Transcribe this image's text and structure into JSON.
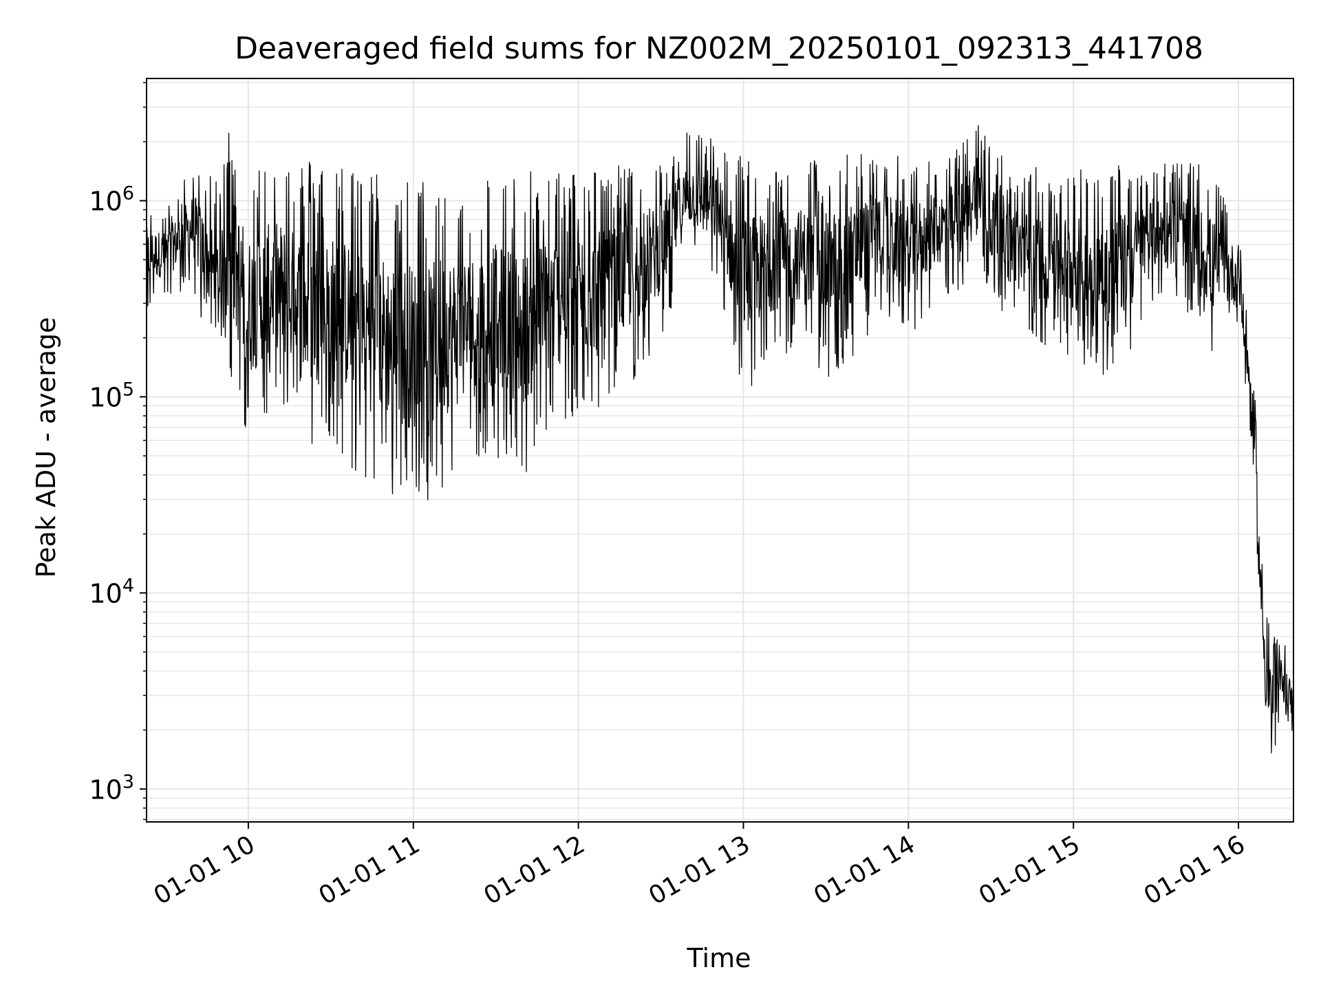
{
  "chart_data": {
    "type": "line",
    "title": "Deaveraged field sums for NZ002M_20250101_092313_441708",
    "xlabel": "Time",
    "ylabel": "Peak ADU - average",
    "yscale": "log",
    "xlim": [
      "2025-01-01 09:23",
      "2025-01-01 16:20"
    ],
    "ylim": [
      680,
      4200000
    ],
    "x_ticks": [
      {
        "value": "2025-01-01 10:00",
        "label": "01-01 10"
      },
      {
        "value": "2025-01-01 11:00",
        "label": "01-01 11"
      },
      {
        "value": "2025-01-01 12:00",
        "label": "01-01 12"
      },
      {
        "value": "2025-01-01 13:00",
        "label": "01-01 13"
      },
      {
        "value": "2025-01-01 14:00",
        "label": "01-01 14"
      },
      {
        "value": "2025-01-01 15:00",
        "label": "01-01 15"
      },
      {
        "value": "2025-01-01 16:00",
        "label": "01-01 16"
      }
    ],
    "y_ticks": [
      {
        "value": 1000,
        "label_base": "10",
        "label_exp": "3"
      },
      {
        "value": 10000,
        "label_base": "10",
        "label_exp": "4"
      },
      {
        "value": 100000,
        "label_base": "10",
        "label_exp": "5"
      },
      {
        "value": 1000000,
        "label_base": "10",
        "label_exp": "6"
      }
    ],
    "grid": true,
    "colors": {
      "line": "#000000",
      "grid": "#e6e6e6",
      "axes": "#000000"
    },
    "series": [
      {
        "x": [
          "2025-01-01 09:23",
          "2025-01-01 09:30",
          "2025-01-01 09:40",
          "2025-01-01 09:50",
          "2025-01-01 09:53",
          "2025-01-01 10:00",
          "2025-01-01 10:10",
          "2025-01-01 10:20",
          "2025-01-01 10:30",
          "2025-01-01 10:40",
          "2025-01-01 10:50",
          "2025-01-01 11:00",
          "2025-01-01 11:05",
          "2025-01-01 11:10",
          "2025-01-01 11:20",
          "2025-01-01 11:30",
          "2025-01-01 11:40",
          "2025-01-01 11:50",
          "2025-01-01 12:00",
          "2025-01-01 12:10",
          "2025-01-01 12:20",
          "2025-01-01 12:30",
          "2025-01-01 12:40",
          "2025-01-01 12:50",
          "2025-01-01 13:00",
          "2025-01-01 13:10",
          "2025-01-01 13:20",
          "2025-01-01 13:30",
          "2025-01-01 13:40",
          "2025-01-01 13:50",
          "2025-01-01 14:00",
          "2025-01-01 14:10",
          "2025-01-01 14:20",
          "2025-01-01 14:25",
          "2025-01-01 14:30",
          "2025-01-01 14:40",
          "2025-01-01 14:50",
          "2025-01-01 15:00",
          "2025-01-01 15:10",
          "2025-01-01 15:20",
          "2025-01-01 15:30",
          "2025-01-01 15:40",
          "2025-01-01 15:50",
          "2025-01-01 15:55",
          "2025-01-01 16:00",
          "2025-01-01 16:03",
          "2025-01-01 16:06",
          "2025-01-01 16:08",
          "2025-01-01 16:10",
          "2025-01-01 16:13",
          "2025-01-01 16:16",
          "2025-01-01 16:20"
        ],
        "y": [
          500000,
          450000,
          700000,
          520000,
          600000,
          400000,
          700000,
          250000,
          300000,
          450000,
          200000,
          220000,
          150000,
          200000,
          250000,
          300000,
          250000,
          280000,
          250000,
          500000,
          300000,
          400000,
          900000,
          800000,
          650000,
          450000,
          400000,
          420000,
          500000,
          650000,
          700000,
          750000,
          900000,
          1200000,
          700000,
          550000,
          600000,
          500000,
          600000,
          650000,
          800000,
          900000,
          700000,
          650000,
          300000,
          150000,
          50000,
          10000,
          4500,
          4000,
          4200,
          2000
        ],
        "envelope_high": [
          1000000,
          900000,
          1600000,
          1200000,
          2700000,
          1500000,
          1700000,
          1700000,
          1600000,
          1500000,
          1400000,
          1300000,
          1300000,
          1400000,
          1300000,
          1400000,
          1400000,
          1500000,
          1500000,
          1500000,
          1600000,
          1600000,
          2400000,
          2100000,
          1700000,
          1600000,
          1600000,
          1700000,
          1800000,
          1900000,
          1600000,
          1700000,
          2000000,
          2600000,
          2000000,
          1500000,
          1500000,
          1500000,
          1500000,
          1600000,
          1600000,
          1600000,
          1500000,
          1000000,
          800000,
          300000,
          100000,
          20000,
          9000,
          6000,
          6000,
          4000
        ],
        "envelope_low": [
          280000,
          320000,
          350000,
          100000,
          120000,
          55000,
          85000,
          45000,
          50000,
          40000,
          30000,
          25000,
          19000,
          30000,
          40000,
          50000,
          35000,
          60000,
          80000,
          70000,
          120000,
          200000,
          500000,
          400000,
          100000,
          150000,
          180000,
          120000,
          160000,
          250000,
          200000,
          300000,
          350000,
          600000,
          300000,
          200000,
          180000,
          150000,
          120000,
          150000,
          300000,
          300000,
          150000,
          200000,
          200000,
          100000,
          30000,
          6000,
          1500,
          1000,
          2500,
          1800
        ]
      }
    ]
  }
}
